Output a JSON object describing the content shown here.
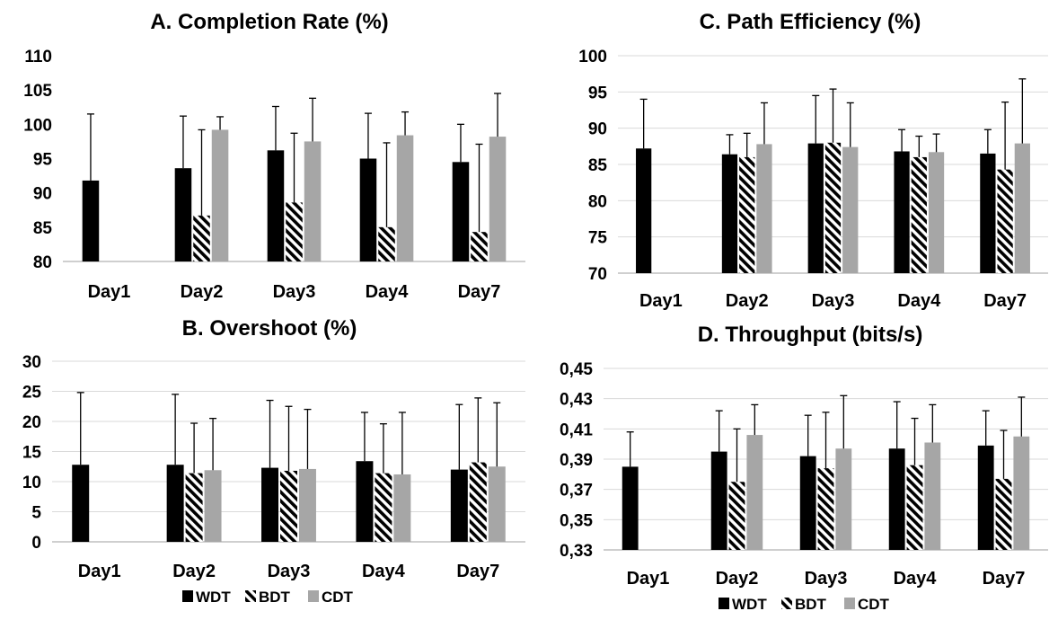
{
  "legend": {
    "items": [
      {
        "label": "WDT",
        "pattern": "solid-black"
      },
      {
        "label": "BDT",
        "pattern": "hatched"
      },
      {
        "label": "CDT",
        "pattern": "solid-gray"
      }
    ]
  },
  "colors": {
    "wdt": "#000000",
    "bdt_stripe": "#000000",
    "cdt": "#a6a6a6",
    "grid": "#d9d9d9",
    "axis": "#bfbfbf"
  },
  "chart_data": [
    {
      "id": "A",
      "type": "bar",
      "title": "A. Completion Rate (%)",
      "categories": [
        "Day1",
        "Day2",
        "Day3",
        "Day4",
        "Day7"
      ],
      "ylim": [
        80,
        110
      ],
      "yticks": [
        "80",
        "85",
        "90",
        "95",
        "100",
        "105",
        "110"
      ],
      "grid": false,
      "series": [
        {
          "name": "WDT",
          "values": [
            91.8,
            93.6,
            96.2,
            95.0,
            94.5
          ],
          "errors": [
            9.7,
            7.6,
            6.4,
            6.6,
            5.5
          ]
        },
        {
          "name": "BDT",
          "values": [
            null,
            86.7,
            88.6,
            85.0,
            84.3
          ],
          "errors": [
            null,
            12.5,
            10.1,
            12.3,
            12.8
          ]
        },
        {
          "name": "CDT",
          "values": [
            null,
            99.2,
            97.5,
            98.4,
            98.2
          ],
          "errors": [
            null,
            1.9,
            6.3,
            3.4,
            6.3
          ]
        }
      ]
    },
    {
      "id": "B",
      "type": "bar",
      "title": "B. Overshoot (%)",
      "categories": [
        "Day1",
        "Day2",
        "Day3",
        "Day4",
        "Day7"
      ],
      "ylim": [
        0,
        30
      ],
      "yticks": [
        "0",
        "5",
        "10",
        "15",
        "20",
        "25",
        "30"
      ],
      "grid": true,
      "series": [
        {
          "name": "WDT",
          "values": [
            12.8,
            12.8,
            12.3,
            13.4,
            12.0
          ],
          "errors": [
            12.0,
            11.7,
            11.2,
            8.1,
            10.8
          ]
        },
        {
          "name": "BDT",
          "values": [
            null,
            11.4,
            11.8,
            11.4,
            13.2
          ],
          "errors": [
            null,
            8.3,
            10.7,
            8.2,
            10.7
          ]
        },
        {
          "name": "CDT",
          "values": [
            null,
            11.9,
            12.1,
            11.2,
            12.5
          ],
          "errors": [
            null,
            8.6,
            9.9,
            10.3,
            10.6
          ]
        }
      ]
    },
    {
      "id": "C",
      "type": "bar",
      "title": "C. Path Efficiency (%)",
      "categories": [
        "Day1",
        "Day2",
        "Day3",
        "Day4",
        "Day7"
      ],
      "ylim": [
        70,
        100
      ],
      "yticks": [
        "70",
        "75",
        "80",
        "85",
        "90",
        "95",
        "100"
      ],
      "grid": true,
      "series": [
        {
          "name": "WDT",
          "values": [
            87.2,
            86.4,
            87.9,
            86.8,
            86.5
          ],
          "errors": [
            6.8,
            2.7,
            6.6,
            3.0,
            3.3
          ]
        },
        {
          "name": "BDT",
          "values": [
            null,
            86.0,
            88.0,
            86.0,
            84.3
          ],
          "errors": [
            null,
            3.3,
            7.4,
            2.9,
            9.3
          ]
        },
        {
          "name": "CDT",
          "values": [
            null,
            87.8,
            87.4,
            86.7,
            87.9
          ],
          "errors": [
            null,
            5.7,
            6.1,
            2.5,
            8.9
          ]
        }
      ]
    },
    {
      "id": "D",
      "type": "bar",
      "title": "D. Throughput (bits/s)",
      "categories": [
        "Day1",
        "Day2",
        "Day3",
        "Day4",
        "Day7"
      ],
      "ylim": [
        0.33,
        0.45
      ],
      "yticks": [
        "0,33",
        "0,35",
        "0,37",
        "0,39",
        "0,41",
        "0,43",
        "0,45"
      ],
      "grid": true,
      "series": [
        {
          "name": "WDT",
          "values": [
            0.385,
            0.395,
            0.392,
            0.397,
            0.399
          ],
          "errors": [
            0.023,
            0.027,
            0.027,
            0.031,
            0.023
          ]
        },
        {
          "name": "BDT",
          "values": [
            null,
            0.375,
            0.384,
            0.386,
            0.377
          ],
          "errors": [
            null,
            0.035,
            0.037,
            0.031,
            0.032
          ]
        },
        {
          "name": "CDT",
          "values": [
            null,
            0.406,
            0.397,
            0.401,
            0.405
          ],
          "errors": [
            null,
            0.02,
            0.035,
            0.025,
            0.026
          ]
        }
      ]
    }
  ]
}
